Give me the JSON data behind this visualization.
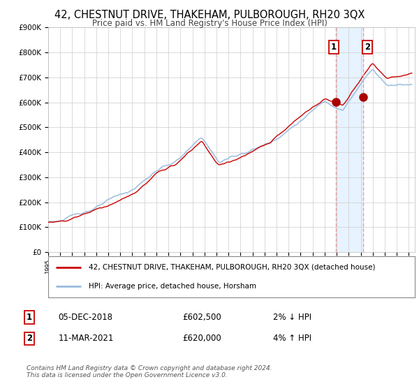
{
  "title": "42, CHESTNUT DRIVE, THAKEHAM, PULBOROUGH, RH20 3QX",
  "subtitle": "Price paid vs. HM Land Registry's House Price Index (HPI)",
  "ylabel_ticks": [
    "£0",
    "£100K",
    "£200K",
    "£300K",
    "£400K",
    "£500K",
    "£600K",
    "£700K",
    "£800K",
    "£900K"
  ],
  "ylim": [
    0,
    900000
  ],
  "xlim_start": 1995.0,
  "xlim_end": 2025.5,
  "sale1_x": 2018.92,
  "sale1_y": 602500,
  "sale2_x": 2021.2,
  "sale2_y": 620000,
  "red_dashed_color": "#e8a0a0",
  "blue_shading_start": 2018.92,
  "blue_shading_end": 2021.2,
  "legend_red_label": "42, CHESTNUT DRIVE, THAKEHAM, PULBOROUGH, RH20 3QX (detached house)",
  "legend_blue_label": "HPI: Average price, detached house, Horsham",
  "table_row1": [
    "1",
    "05-DEC-2018",
    "£602,500",
    "2% ↓ HPI"
  ],
  "table_row2": [
    "2",
    "11-MAR-2021",
    "£620,000",
    "4% ↑ HPI"
  ],
  "footer": "Contains HM Land Registry data © Crown copyright and database right 2024.\nThis data is licensed under the Open Government Licence v3.0.",
  "bg_color": "#ffffff",
  "grid_color": "#cccccc",
  "red_line_color": "#cc0000",
  "blue_line_color": "#99bbdd",
  "blue_shade_color": "#ddeeff",
  "marker_color": "#aa0000",
  "title_fontsize": 10.5,
  "subtitle_fontsize": 8.5,
  "tick_fontsize": 7.5,
  "legend_fontsize": 7.5,
  "table_fontsize": 8.5,
  "footer_fontsize": 6.5
}
